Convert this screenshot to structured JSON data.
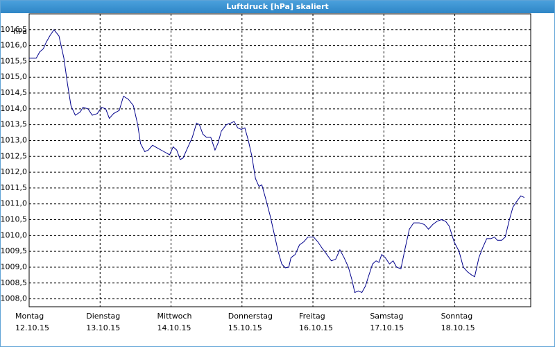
{
  "chart_data": {
    "type": "line",
    "title": "Luftdruck [hPa] skaliert",
    "ylabel": "hPa",
    "xlim": [
      0,
      7.07
    ],
    "ylim": [
      1007.75,
      1017.0
    ],
    "xticks": [
      {
        "value": 0,
        "label": "Montag",
        "date": "12.10.15"
      },
      {
        "value": 1,
        "label": "Dienstag",
        "date": "13.10.15"
      },
      {
        "value": 2,
        "label": "Mittwoch",
        "date": "14.10.15"
      },
      {
        "value": 3,
        "label": "Donnerstag",
        "date": "15.10.15"
      },
      {
        "value": 4,
        "label": "Freitag",
        "date": "16.10.15"
      },
      {
        "value": 5,
        "label": "Samstag",
        "date": "17.10.15"
      },
      {
        "value": 6,
        "label": "Sonntag",
        "date": "18.10.15"
      }
    ],
    "yticks": [
      {
        "value": 1008.0,
        "label": "1008,0"
      },
      {
        "value": 1008.5,
        "label": "1008,5"
      },
      {
        "value": 1009.0,
        "label": "1009,0"
      },
      {
        "value": 1009.5,
        "label": "1009,5"
      },
      {
        "value": 1010.0,
        "label": "1010,0"
      },
      {
        "value": 1010.5,
        "label": "1010,5"
      },
      {
        "value": 1011.0,
        "label": "1011,0"
      },
      {
        "value": 1011.5,
        "label": "1011,5"
      },
      {
        "value": 1012.0,
        "label": "1012,0"
      },
      {
        "value": 1012.5,
        "label": "1012,5"
      },
      {
        "value": 1013.0,
        "label": "1013,0"
      },
      {
        "value": 1013.5,
        "label": "1013,5"
      },
      {
        "value": 1014.0,
        "label": "1014,0"
      },
      {
        "value": 1014.5,
        "label": "1014,5"
      },
      {
        "value": 1015.0,
        "label": "1015,0"
      },
      {
        "value": 1015.5,
        "label": "1015,5"
      },
      {
        "value": 1016.0,
        "label": "1016,0"
      },
      {
        "value": 1016.5,
        "label": "1016,5"
      }
    ],
    "grid": true,
    "series": [
      {
        "color": "#00008b",
        "x": [
          0,
          0.1,
          0.15,
          0.2,
          0.24,
          0.29,
          0.35,
          0.42,
          0.49,
          0.54,
          0.59,
          0.65,
          0.72,
          0.76,
          0.83,
          0.89,
          0.96,
          1.02,
          1.08,
          1.13,
          1.19,
          1.27,
          1.33,
          1.4,
          1.47,
          1.53,
          1.57,
          1.63,
          1.68,
          1.74,
          1.82,
          1.9,
          1.98,
          2.03,
          2.08,
          2.13,
          2.17,
          2.23,
          2.3,
          2.36,
          2.4,
          2.45,
          2.5,
          2.56,
          2.62,
          2.66,
          2.71,
          2.78,
          2.84,
          2.89,
          2.94,
          2.99,
          3.04,
          3.09,
          3.14,
          3.19,
          3.24,
          3.28,
          3.33,
          3.4,
          3.46,
          3.51,
          3.56,
          3.61,
          3.66,
          3.69,
          3.75,
          3.81,
          3.87,
          3.93,
          4.01,
          4.07,
          4.13,
          4.18,
          4.26,
          4.32,
          4.38,
          4.44,
          4.5,
          4.55,
          4.59,
          4.64,
          4.69,
          4.74,
          4.79,
          4.84,
          4.89,
          4.93,
          4.97,
          5.02,
          5.08,
          5.13,
          5.18,
          5.24,
          5.3,
          5.36,
          5.42,
          5.5,
          5.57,
          5.63,
          5.69,
          5.75,
          5.81,
          5.87,
          5.92,
          5.99,
          6.06,
          6.12,
          6.18,
          6.24,
          6.28,
          6.34,
          6.39,
          6.45,
          6.51,
          6.56,
          6.6,
          6.66,
          6.71,
          6.77,
          6.82,
          6.88,
          6.93,
          6.98
        ],
        "values": [
          1015.6,
          1015.6,
          1015.8,
          1015.9,
          1016.1,
          1016.3,
          1016.5,
          1016.3,
          1015.6,
          1014.8,
          1014.1,
          1013.8,
          1013.9,
          1014.05,
          1014.0,
          1013.8,
          1013.85,
          1014.05,
          1014.0,
          1013.7,
          1013.85,
          1013.95,
          1014.4,
          1014.3,
          1014.1,
          1013.5,
          1012.9,
          1012.65,
          1012.7,
          1012.85,
          1012.75,
          1012.65,
          1012.55,
          1012.8,
          1012.7,
          1012.4,
          1012.45,
          1012.75,
          1013.1,
          1013.55,
          1013.5,
          1013.2,
          1013.1,
          1013.1,
          1012.7,
          1012.9,
          1013.3,
          1013.5,
          1013.55,
          1013.6,
          1013.4,
          1013.35,
          1013.4,
          1013.0,
          1012.5,
          1011.8,
          1011.55,
          1011.6,
          1011.2,
          1010.6,
          1010.0,
          1009.5,
          1009.1,
          1008.98,
          1009.0,
          1009.3,
          1009.4,
          1009.7,
          1009.8,
          1009.95,
          1009.95,
          1009.8,
          1009.6,
          1009.45,
          1009.2,
          1009.25,
          1009.55,
          1009.3,
          1009.0,
          1008.6,
          1008.2,
          1008.25,
          1008.2,
          1008.4,
          1008.75,
          1009.1,
          1009.2,
          1009.15,
          1009.4,
          1009.3,
          1009.1,
          1009.2,
          1009.0,
          1008.95,
          1009.6,
          1010.2,
          1010.4,
          1010.4,
          1010.35,
          1010.2,
          1010.35,
          1010.45,
          1010.5,
          1010.45,
          1010.3,
          1009.8,
          1009.5,
          1009.0,
          1008.85,
          1008.75,
          1008.7,
          1009.3,
          1009.6,
          1009.9,
          1009.9,
          1009.95,
          1009.85,
          1009.85,
          1009.95,
          1010.5,
          1010.9,
          1011.1,
          1011.25,
          1011.2
        ]
      }
    ]
  }
}
